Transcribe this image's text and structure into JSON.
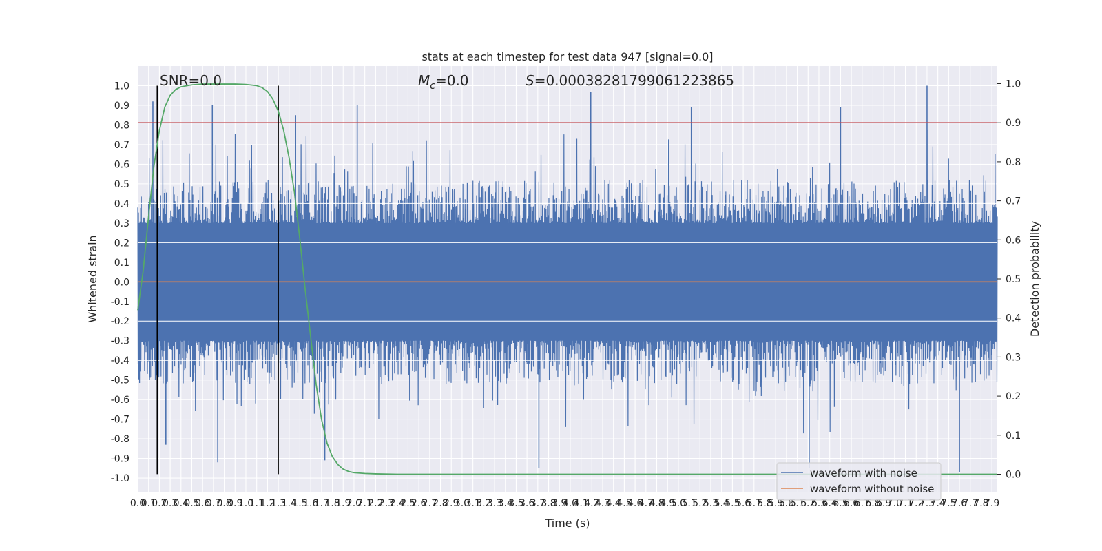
{
  "chart_data": {
    "type": "line",
    "title": "stats at each timestep for test data 947 [signal=0.0]",
    "xlabel": "Time (s)",
    "ylabel": "Whitened strain",
    "y2label": "Detection probability",
    "xlim": [
      0.0,
      7.95
    ],
    "ylim": [
      -1.07,
      1.1
    ],
    "y2lim": [
      -0.045,
      1.045
    ],
    "x_ticks": [
      0.0,
      0.1,
      0.2,
      0.3,
      0.4,
      0.5,
      0.6,
      0.7,
      0.8,
      0.9,
      1.0,
      1.1,
      1.2,
      1.3,
      1.4,
      1.5,
      1.6,
      1.7,
      1.8,
      1.9,
      2.0,
      2.1,
      2.2,
      2.3,
      2.4,
      2.5,
      2.6,
      2.7,
      2.8,
      2.9,
      3.0,
      3.1,
      3.2,
      3.3,
      3.4,
      3.5,
      3.6,
      3.7,
      3.8,
      3.9,
      4.0,
      4.1,
      4.2,
      4.3,
      4.4,
      4.5,
      4.6,
      4.7,
      4.8,
      4.9,
      5.0,
      5.1,
      5.2,
      5.3,
      5.4,
      5.5,
      5.6,
      5.7,
      5.8,
      5.9,
      6.0,
      6.1,
      6.2,
      6.3,
      6.4,
      6.5,
      6.6,
      6.7,
      6.8,
      6.9,
      7.0,
      7.1,
      7.2,
      7.3,
      7.4,
      7.5,
      7.6,
      7.7,
      7.8,
      7.9
    ],
    "y_ticks": [
      -1.0,
      -0.9,
      -0.8,
      -0.7,
      -0.6,
      -0.5,
      -0.4,
      -0.3,
      -0.2,
      -0.1,
      0.0,
      0.1,
      0.2,
      0.3,
      0.4,
      0.5,
      0.6,
      0.7,
      0.8,
      0.9,
      1.0
    ],
    "y2_ticks": [
      0.0,
      0.1,
      0.2,
      0.3,
      0.4,
      0.5,
      0.6,
      0.7,
      0.8,
      0.9,
      1.0
    ],
    "grid": true,
    "legend_position": "lower-right",
    "annotations": {
      "snr": "SNR=0.0",
      "mc": "Mc=0.0",
      "s": "S=0.00038281799061223865"
    },
    "vertical_lines_x": [
      0.18,
      1.3
    ],
    "threshold_y2": 0.9,
    "series": [
      {
        "name": "waveform with noise",
        "axis": "left",
        "color": "#4c72b0",
        "style": "dense-noise",
        "envelope_peaks": [
          {
            "x": 0.14,
            "y": 0.92
          },
          {
            "x": 0.69,
            "y": 0.9
          },
          {
            "x": 2.03,
            "y": 0.9
          },
          {
            "x": 4.19,
            "y": 0.97
          },
          {
            "x": 5.12,
            "y": 0.89
          },
          {
            "x": 6.5,
            "y": 0.89
          },
          {
            "x": 7.3,
            "y": 1.0
          },
          {
            "x": 1.46,
            "y": 0.85
          },
          {
            "x": 0.74,
            "y": -0.92
          },
          {
            "x": 1.73,
            "y": -0.91
          },
          {
            "x": 3.71,
            "y": -0.95
          },
          {
            "x": 6.21,
            "y": -0.95
          },
          {
            "x": 7.6,
            "y": -0.97
          },
          {
            "x": 0.26,
            "y": -0.83
          }
        ]
      },
      {
        "name": "waveform without noise",
        "axis": "left",
        "color": "#dd8452",
        "style": "line",
        "x": [
          0.0,
          7.95
        ],
        "y": [
          0.0,
          0.0
        ]
      },
      {
        "name": "",
        "axis": "right",
        "color": "#55a868",
        "style": "line",
        "x": [
          0.0,
          0.05,
          0.1,
          0.15,
          0.2,
          0.25,
          0.3,
          0.35,
          0.4,
          0.5,
          0.6,
          0.7,
          0.8,
          0.9,
          1.0,
          1.1,
          1.15,
          1.2,
          1.25,
          1.3,
          1.35,
          1.4,
          1.45,
          1.5,
          1.55,
          1.6,
          1.65,
          1.7,
          1.75,
          1.8,
          1.85,
          1.9,
          1.95,
          2.0,
          2.1,
          2.2,
          2.4,
          3.0,
          4.0,
          5.0,
          6.0,
          7.0,
          7.95
        ],
        "y": [
          0.42,
          0.52,
          0.66,
          0.79,
          0.88,
          0.94,
          0.97,
          0.985,
          0.992,
          0.997,
          0.999,
          0.999,
          0.999,
          0.999,
          0.998,
          0.995,
          0.99,
          0.98,
          0.96,
          0.93,
          0.88,
          0.81,
          0.72,
          0.6,
          0.47,
          0.35,
          0.23,
          0.14,
          0.08,
          0.045,
          0.025,
          0.013,
          0.007,
          0.004,
          0.002,
          0.001,
          0.0,
          0.0,
          0.0,
          0.0,
          0.0,
          0.0,
          0.0
        ]
      }
    ]
  }
}
